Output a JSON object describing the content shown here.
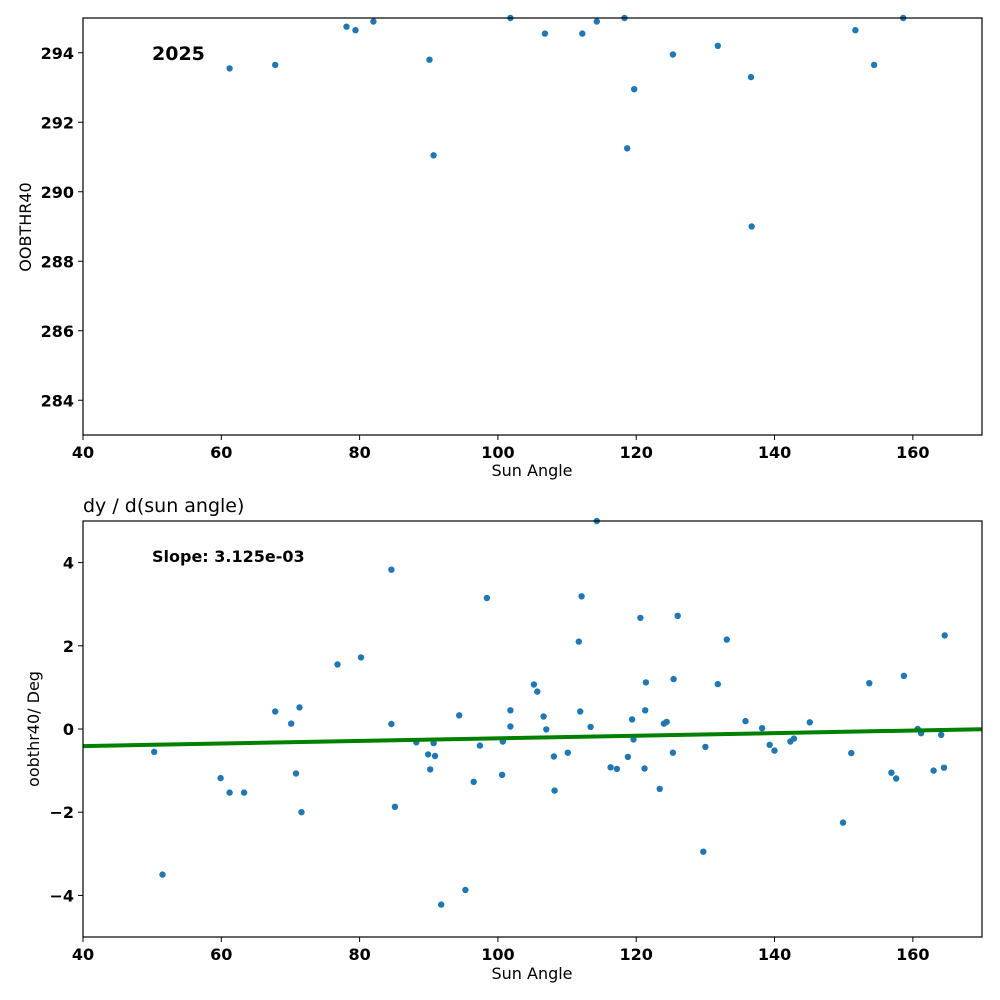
{
  "colors": {
    "points": "#1f77b4",
    "fit_line": "#008000",
    "axes": "#000000"
  },
  "chart_data": [
    {
      "type": "scatter",
      "title": "",
      "annotation": "2025",
      "xlabel": "Sun Angle",
      "ylabel": "OOBTHR40",
      "xlim": [
        40,
        170
      ],
      "ylim": [
        283,
        295
      ],
      "xticks": [
        40,
        60,
        80,
        100,
        120,
        140,
        160
      ],
      "yticks": [
        284,
        286,
        288,
        290,
        292,
        294
      ],
      "grid": false,
      "points": [
        [
          61.2,
          293.55
        ],
        [
          67.8,
          293.65
        ],
        [
          78.1,
          294.75
        ],
        [
          79.4,
          294.65
        ],
        [
          82.0,
          294.9
        ],
        [
          90.1,
          293.8
        ],
        [
          90.7,
          291.05
        ],
        [
          101.8,
          295.0
        ],
        [
          106.8,
          294.55
        ],
        [
          112.2,
          294.55
        ],
        [
          114.3,
          294.9
        ],
        [
          118.3,
          295.0
        ],
        [
          118.7,
          291.25
        ],
        [
          119.7,
          292.95
        ],
        [
          125.3,
          293.95
        ],
        [
          131.8,
          294.2
        ],
        [
          136.6,
          293.3
        ],
        [
          136.7,
          289.0
        ],
        [
          151.7,
          294.65
        ],
        [
          154.4,
          293.65
        ],
        [
          158.6,
          295.0
        ]
      ]
    },
    {
      "type": "scatter",
      "title": "dy / d(sun angle)",
      "annotation": "Slope: 3.125e-03",
      "xlabel": "Sun Angle",
      "ylabel": "oobthr40/ Deg",
      "xlim": [
        40,
        170
      ],
      "ylim": [
        -5,
        5
      ],
      "xticks": [
        40,
        60,
        80,
        100,
        120,
        140,
        160
      ],
      "yticks": [
        -4,
        -2,
        0,
        2,
        4
      ],
      "ytick_labels": [
        "−4",
        "−2",
        "0",
        "2",
        "4"
      ],
      "grid": false,
      "fit_line": {
        "x": [
          40,
          170
        ],
        "y": [
          -0.41,
          -0.005
        ]
      },
      "points": [
        [
          50.3,
          -0.55
        ],
        [
          51.5,
          -3.5
        ],
        [
          59.9,
          -1.18
        ],
        [
          61.2,
          -1.53
        ],
        [
          63.3,
          -1.53
        ],
        [
          67.8,
          0.42
        ],
        [
          70.1,
          0.13
        ],
        [
          70.8,
          -1.07
        ],
        [
          71.3,
          0.52
        ],
        [
          71.6,
          -2.0
        ],
        [
          76.8,
          1.55
        ],
        [
          80.2,
          1.72
        ],
        [
          84.6,
          3.83
        ],
        [
          84.6,
          0.12
        ],
        [
          85.1,
          -1.87
        ],
        [
          88.2,
          -0.32
        ],
        [
          89.9,
          -0.61
        ],
        [
          90.2,
          -0.97
        ],
        [
          90.7,
          -0.34
        ],
        [
          90.9,
          -0.65
        ],
        [
          91.8,
          -4.22
        ],
        [
          94.4,
          0.33
        ],
        [
          95.3,
          -3.87
        ],
        [
          96.5,
          -1.27
        ],
        [
          97.4,
          -0.4
        ],
        [
          98.4,
          3.15
        ],
        [
          100.6,
          -1.1
        ],
        [
          100.7,
          -0.3
        ],
        [
          101.8,
          0.45
        ],
        [
          101.8,
          0.06
        ],
        [
          105.2,
          1.07
        ],
        [
          105.7,
          0.9
        ],
        [
          106.6,
          0.3
        ],
        [
          107.0,
          -0.01
        ],
        [
          108.1,
          -0.66
        ],
        [
          108.2,
          -1.48
        ],
        [
          110.1,
          -0.57
        ],
        [
          111.7,
          2.1
        ],
        [
          111.9,
          0.42
        ],
        [
          112.1,
          3.19
        ],
        [
          113.4,
          0.05
        ],
        [
          114.3,
          5.0
        ],
        [
          116.3,
          -0.92
        ],
        [
          117.2,
          -0.96
        ],
        [
          118.8,
          -0.67
        ],
        [
          119.4,
          0.23
        ],
        [
          119.6,
          -0.25
        ],
        [
          120.6,
          2.67
        ],
        [
          121.2,
          -0.95
        ],
        [
          121.3,
          0.45
        ],
        [
          121.4,
          1.12
        ],
        [
          123.4,
          -1.44
        ],
        [
          124.0,
          0.13
        ],
        [
          124.4,
          0.17
        ],
        [
          125.3,
          -0.57
        ],
        [
          125.4,
          1.2
        ],
        [
          126.0,
          2.72
        ],
        [
          129.7,
          -2.95
        ],
        [
          130.0,
          -0.43
        ],
        [
          131.8,
          1.08
        ],
        [
          133.1,
          2.15
        ],
        [
          135.8,
          0.19
        ],
        [
          138.2,
          0.02
        ],
        [
          139.3,
          -0.38
        ],
        [
          140.0,
          -0.52
        ],
        [
          142.3,
          -0.3
        ],
        [
          142.8,
          -0.23
        ],
        [
          145.1,
          0.16
        ],
        [
          149.9,
          -2.25
        ],
        [
          151.1,
          -0.58
        ],
        [
          153.7,
          1.1
        ],
        [
          156.9,
          -1.05
        ],
        [
          157.6,
          -1.19
        ],
        [
          158.7,
          1.28
        ],
        [
          160.7,
          0.0
        ],
        [
          161.2,
          -0.1
        ],
        [
          163.0,
          -1.0
        ],
        [
          164.1,
          -0.14
        ],
        [
          164.5,
          -0.93
        ],
        [
          164.6,
          2.25
        ]
      ]
    }
  ]
}
